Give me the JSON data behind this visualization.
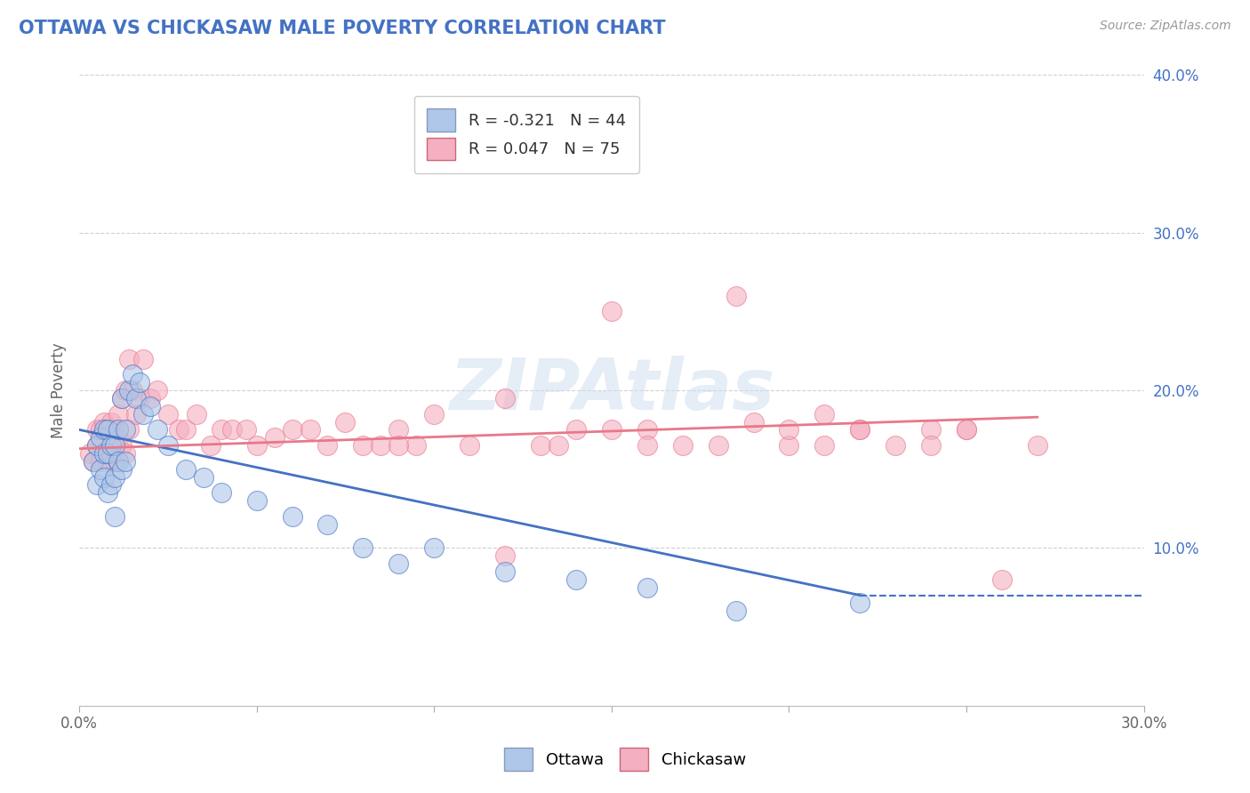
{
  "title": "OTTAWA VS CHICKASAW MALE POVERTY CORRELATION CHART",
  "source_text": "Source: ZipAtlas.com",
  "ylabel": "Male Poverty",
  "xlim": [
    0.0,
    0.3
  ],
  "ylim": [
    0.0,
    0.4
  ],
  "xticks": [
    0.0,
    0.05,
    0.1,
    0.15,
    0.2,
    0.25,
    0.3
  ],
  "xticklabels": [
    "0.0%",
    "",
    "",
    "",
    "",
    "",
    "30.0%"
  ],
  "yticks": [
    0.0,
    0.1,
    0.2,
    0.3,
    0.4
  ],
  "yticklabels_right": [
    "",
    "10.0%",
    "20.0%",
    "30.0%",
    "40.0%"
  ],
  "legend_r1": "R = -0.321",
  "legend_n1": "N = 44",
  "legend_r2": "R = 0.047",
  "legend_n2": "N = 75",
  "watermark": "ZIPAtlas",
  "ottawa_color": "#aec6e8",
  "chickasaw_color": "#f4afc0",
  "ottawa_line_color": "#4472c4",
  "chickasaw_line_color": "#e8788a",
  "title_color": "#4472c4",
  "background_color": "#ffffff",
  "ottawa_x": [
    0.004,
    0.005,
    0.005,
    0.006,
    0.006,
    0.007,
    0.007,
    0.007,
    0.008,
    0.008,
    0.008,
    0.009,
    0.009,
    0.01,
    0.01,
    0.01,
    0.011,
    0.011,
    0.012,
    0.012,
    0.013,
    0.013,
    0.014,
    0.015,
    0.016,
    0.017,
    0.018,
    0.02,
    0.022,
    0.025,
    0.03,
    0.035,
    0.04,
    0.05,
    0.06,
    0.07,
    0.08,
    0.09,
    0.1,
    0.12,
    0.14,
    0.16,
    0.185,
    0.22
  ],
  "ottawa_y": [
    0.155,
    0.14,
    0.165,
    0.15,
    0.17,
    0.145,
    0.16,
    0.175,
    0.135,
    0.16,
    0.175,
    0.14,
    0.165,
    0.12,
    0.145,
    0.165,
    0.155,
    0.175,
    0.15,
    0.195,
    0.155,
    0.175,
    0.2,
    0.21,
    0.195,
    0.205,
    0.185,
    0.19,
    0.175,
    0.165,
    0.15,
    0.145,
    0.135,
    0.13,
    0.12,
    0.115,
    0.1,
    0.09,
    0.1,
    0.085,
    0.08,
    0.075,
    0.06,
    0.065
  ],
  "chickasaw_x": [
    0.003,
    0.004,
    0.005,
    0.005,
    0.006,
    0.006,
    0.007,
    0.007,
    0.008,
    0.008,
    0.009,
    0.009,
    0.01,
    0.01,
    0.011,
    0.011,
    0.012,
    0.012,
    0.013,
    0.013,
    0.014,
    0.014,
    0.015,
    0.016,
    0.017,
    0.018,
    0.02,
    0.022,
    0.025,
    0.028,
    0.03,
    0.033,
    0.037,
    0.04,
    0.043,
    0.047,
    0.05,
    0.055,
    0.06,
    0.065,
    0.07,
    0.075,
    0.08,
    0.085,
    0.09,
    0.095,
    0.1,
    0.11,
    0.12,
    0.13,
    0.14,
    0.15,
    0.16,
    0.17,
    0.18,
    0.19,
    0.2,
    0.21,
    0.22,
    0.23,
    0.24,
    0.25,
    0.26,
    0.15,
    0.16,
    0.12,
    0.135,
    0.09,
    0.185,
    0.2,
    0.21,
    0.22,
    0.24,
    0.25,
    0.27
  ],
  "chickasaw_y": [
    0.16,
    0.155,
    0.165,
    0.175,
    0.155,
    0.175,
    0.16,
    0.18,
    0.155,
    0.175,
    0.16,
    0.18,
    0.155,
    0.175,
    0.17,
    0.185,
    0.165,
    0.195,
    0.16,
    0.2,
    0.175,
    0.22,
    0.2,
    0.185,
    0.195,
    0.22,
    0.195,
    0.2,
    0.185,
    0.175,
    0.175,
    0.185,
    0.165,
    0.175,
    0.175,
    0.175,
    0.165,
    0.17,
    0.175,
    0.175,
    0.165,
    0.18,
    0.165,
    0.165,
    0.175,
    0.165,
    0.185,
    0.165,
    0.195,
    0.165,
    0.175,
    0.175,
    0.175,
    0.165,
    0.165,
    0.18,
    0.165,
    0.165,
    0.175,
    0.165,
    0.175,
    0.175,
    0.08,
    0.25,
    0.165,
    0.095,
    0.165,
    0.165,
    0.26,
    0.175,
    0.185,
    0.175,
    0.165,
    0.175,
    0.165
  ]
}
